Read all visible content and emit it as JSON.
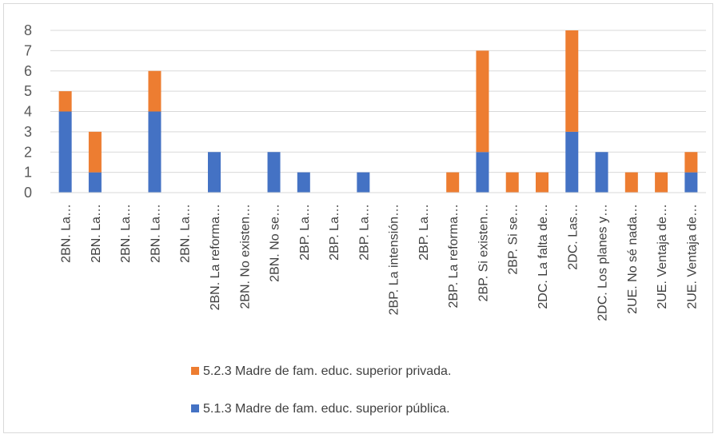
{
  "chart_data": {
    "type": "bar",
    "stacked": true,
    "categories": [
      "2BN. La…",
      "2BN. La…",
      "2BN. La…",
      "2BN. La…",
      "2BN. La…",
      "2BN. La reforma…",
      "2BN. No existen…",
      "2BN. No se…",
      "2BP. La…",
      "2BP. La…",
      "2BP. La…",
      "2BP. La intensión…",
      "2BP. La…",
      "2BP. La reforma…",
      "2BP. Si existen…",
      "2BP. Si se…",
      "2DC. La falta de…",
      "2DC. Las…",
      "2DC. Los planes y…",
      "2UE.  No sé nada…",
      "2UE.  Ventaja de…",
      "2UE. Ventaja de…"
    ],
    "series": [
      {
        "name": "5.1.3 Madre de fam. educ. superior pública.",
        "color": "#4472C4",
        "values": [
          4,
          1,
          0,
          4,
          0,
          2,
          0,
          2,
          1,
          0,
          1,
          0,
          0,
          0,
          2,
          0,
          0,
          3,
          2,
          0,
          0,
          1
        ]
      },
      {
        "name": "5.2.3 Madre de fam. educ. superior privada.",
        "color": "#ED7D31",
        "values": [
          1,
          2,
          0,
          2,
          0,
          0,
          0,
          0,
          0,
          0,
          0,
          0,
          0,
          1,
          5,
          1,
          1,
          5,
          0,
          1,
          1,
          1
        ]
      }
    ],
    "yticks": [
      "0",
      "1",
      "2",
      "3",
      "4",
      "5",
      "6",
      "7",
      "8"
    ],
    "ylim": [
      0,
      8
    ],
    "grid": true,
    "legend": "bottom",
    "legend_order": [
      1,
      0
    ]
  }
}
